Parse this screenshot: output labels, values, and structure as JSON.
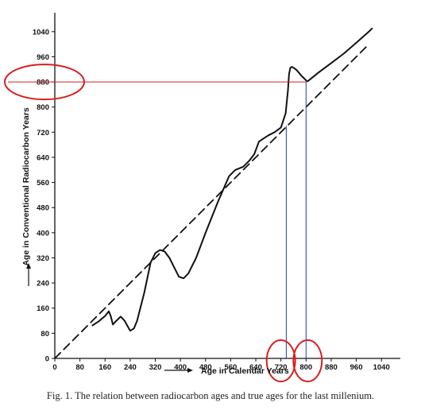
{
  "chart_data": {
    "type": "line",
    "xlabel": "Age in Calendar Years",
    "ylabel": "Age in Conventional Radiocarbon Years",
    "xlim": [
      0,
      1080
    ],
    "ylim": [
      0,
      1080
    ],
    "x_ticks": [
      0,
      80,
      160,
      240,
      320,
      400,
      480,
      560,
      640,
      720,
      800,
      880,
      960,
      1040
    ],
    "y_ticks": [
      0,
      80,
      160,
      240,
      320,
      400,
      480,
      560,
      640,
      720,
      800,
      880,
      960,
      1040
    ],
    "grid": false,
    "series": [
      {
        "style": "solid",
        "x": [
          120,
          140,
          160,
          172,
          178,
          185,
          196,
          210,
          222,
          240,
          252,
          262,
          285,
          305,
          320,
          335,
          350,
          365,
          380,
          395,
          410,
          425,
          450,
          480,
          520,
          555,
          575,
          600,
          620,
          635,
          650,
          665,
          680,
          700,
          720,
          735,
          742,
          746,
          750,
          755,
          760,
          770,
          785,
          800,
          805,
          840,
          880,
          920,
          960,
          1000,
          1010
        ],
        "y": [
          105,
          118,
          135,
          150,
          135,
          108,
          120,
          133,
          120,
          88,
          95,
          120,
          210,
          305,
          335,
          345,
          340,
          320,
          290,
          260,
          255,
          270,
          320,
          400,
          500,
          580,
          600,
          610,
          630,
          650,
          690,
          700,
          710,
          720,
          735,
          780,
          850,
          905,
          925,
          928,
          925,
          918,
          900,
          885,
          882,
          910,
          940,
          970,
          1005,
          1040,
          1050
        ]
      },
      {
        "style": "dashed",
        "x": [
          0,
          1000
        ],
        "y": [
          0,
          1000
        ]
      }
    ],
    "annotations": {
      "horizontal_line": {
        "y": 880,
        "x_from": -100,
        "x_to": 800,
        "color": "#d81f1f"
      },
      "vertical_lines": [
        {
          "x": 737,
          "y_to": 740,
          "color": "#1f3fa8"
        },
        {
          "x": 800,
          "y_to": 882,
          "color": "#1f3fa8"
        }
      ],
      "red_ellipses_on": [
        "880 (y axis)",
        "720 (x axis)",
        "800 (x axis)"
      ]
    }
  },
  "caption": "Fig. 1. The relation between radiocarbon ages and true ages for the last millenium.",
  "colors": {
    "curve": "#111111",
    "highlight_red": "#d81f1f",
    "highlight_blue": "#1f3fa8"
  }
}
